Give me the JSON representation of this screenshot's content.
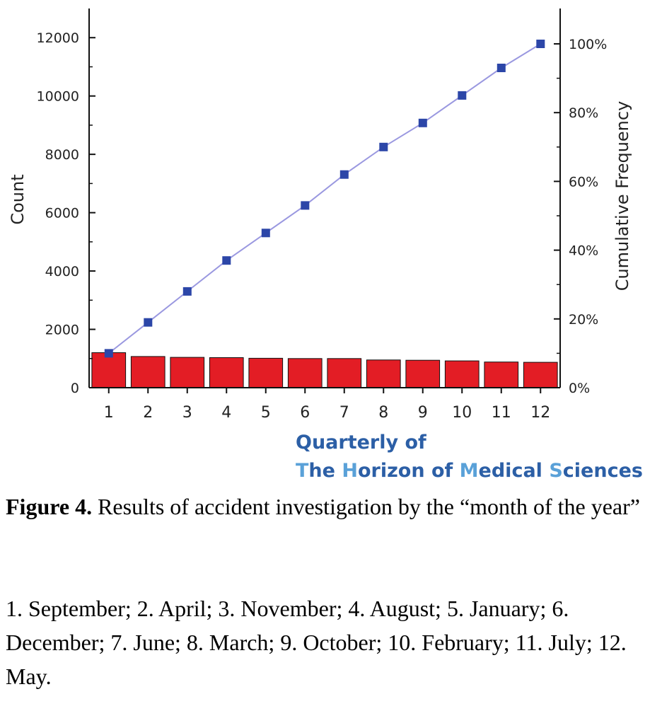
{
  "chart_data": {
    "type": "bar",
    "categories": [
      "1",
      "2",
      "3",
      "4",
      "5",
      "6",
      "7",
      "8",
      "9",
      "10",
      "11",
      "12"
    ],
    "series": [
      {
        "type": "bar",
        "axis": "left",
        "values": [
          1200,
          1070,
          1040,
          1030,
          1010,
          1000,
          1000,
          950,
          940,
          920,
          880,
          870
        ],
        "color": "#e31d25"
      },
      {
        "type": "line",
        "axis": "right",
        "values": [
          10,
          19,
          28,
          37,
          45,
          53,
          62,
          70,
          77,
          85,
          93,
          100
        ],
        "color": "#2c46a8"
      }
    ],
    "ylabel": "Count",
    "ylim": [
      0,
      13000
    ],
    "yticks": [
      0,
      2000,
      4000,
      6000,
      8000,
      10000,
      12000
    ],
    "y2label": "Cumulative Frequency",
    "y2lim": [
      0,
      100
    ],
    "y2ticks": [
      "0%",
      "20%",
      "40%",
      "60%",
      "80%",
      "100%"
    ],
    "grid": false
  },
  "watermark": {
    "line1": "Quarterly of",
    "line2": {
      "a": "T",
      "b": "he ",
      "c": "H",
      "d": "orizon of ",
      "e": "M",
      "f": "edical ",
      "g": "S",
      "h": "ciences"
    }
  },
  "caption": {
    "label": "Figure 4.",
    "text": " Results of accident investigation by the “month of the year”",
    "legend": "1. September; 2. April; 3. November; 4. August; 5. January; 6. December; 7. June; 8. March; 9. October; 10. February; 11. July; 12. May."
  }
}
